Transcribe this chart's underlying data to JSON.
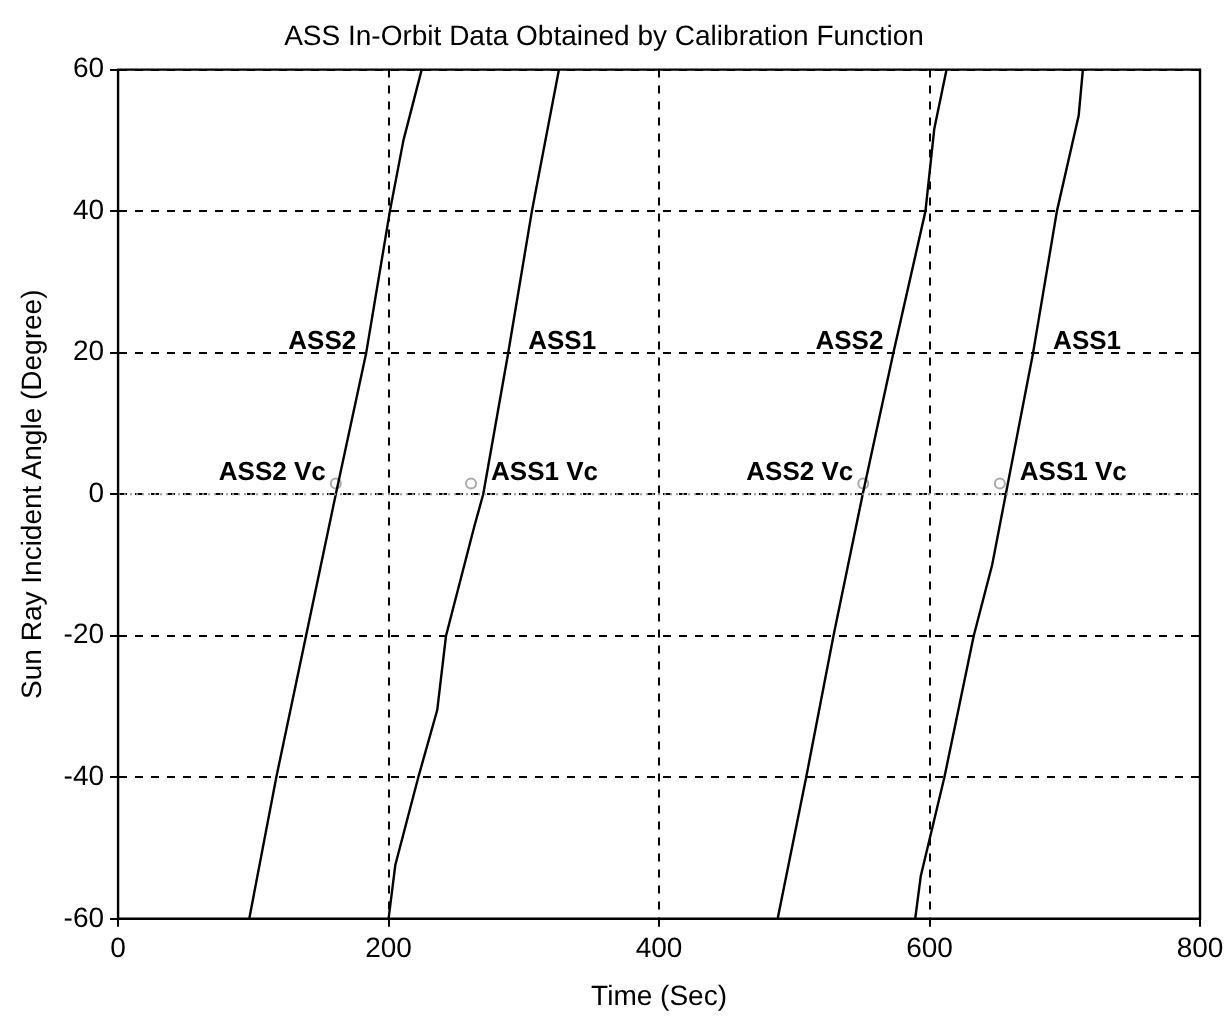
{
  "chart_data": {
    "type": "line",
    "title": "ASS In-Orbit Data Obtained by Calibration Function",
    "xlabel": "Time (Sec)",
    "ylabel": "Sun Ray Incident Angle (Degree)",
    "xlim": [
      0,
      800
    ],
    "xticks": [
      0,
      200,
      400,
      600,
      800
    ],
    "ylim": [
      -60,
      60
    ],
    "yticks": [
      -60,
      -40,
      -20,
      0,
      20,
      40,
      60
    ],
    "grid": true,
    "legend": false,
    "marker": "none",
    "line_style": "solid",
    "series": [
      {
        "color": "#000000",
        "x": [
          97,
          117,
          139,
          161,
          183.5,
          201,
          211,
          224.5
        ],
        "values": [
          -60,
          -40,
          -20,
          0,
          20,
          40,
          50,
          60
        ]
      },
      {
        "color": "#000000",
        "x": [
          200,
          205,
          222,
          236,
          242.5,
          263.5,
          270,
          288.5,
          306,
          326
        ],
        "values": [
          -60,
          -52.4,
          -40,
          -30.5,
          -20,
          -4.5,
          0,
          20,
          40,
          60
        ]
      },
      {
        "color": "#000000",
        "x": [
          487.7,
          508.8,
          529,
          550.6,
          573.3,
          597,
          603.5,
          612.6
        ],
        "values": [
          -60,
          -40,
          -20,
          0,
          20,
          40,
          51.6,
          60
        ]
      },
      {
        "color": "#000000",
        "x": [
          589.4,
          593.5,
          611,
          632.7,
          646.3,
          656.4,
          676.6,
          694.2,
          710.3,
          713.4
        ],
        "values": [
          -60,
          -54,
          -40,
          -20,
          -10,
          0,
          20,
          40,
          53.5,
          60
        ]
      },
      {
        "type": "scatter",
        "marker": "circle",
        "color": "#aaaaaa",
        "x": [
          161,
          261,
          551,
          652
        ],
        "values": [
          1.5,
          1.5,
          1.5,
          1.5
        ]
      }
    ],
    "ref_lines": [
      {
        "axis": "y",
        "value": 0,
        "color": "#999999",
        "line_style": "dotted"
      }
    ],
    "annotations": [
      {
        "text": "ASS2",
        "x": 183.5,
        "y": 20
      },
      {
        "text": "ASS1",
        "x": 288.5,
        "y": 20
      },
      {
        "text": "ASS2 Vc",
        "x": 161,
        "y": 1.5
      },
      {
        "text": "ASS1 Vc",
        "x": 261,
        "y": 1.5
      },
      {
        "text": "ASS2",
        "x": 573.3,
        "y": 20
      },
      {
        "text": "ASS1",
        "x": 676.6,
        "y": 20
      },
      {
        "text": "ASS2 Vc",
        "x": 551,
        "y": 1.5
      },
      {
        "text": "ASS1 Vc",
        "x": 652,
        "y": 1.5
      }
    ]
  }
}
